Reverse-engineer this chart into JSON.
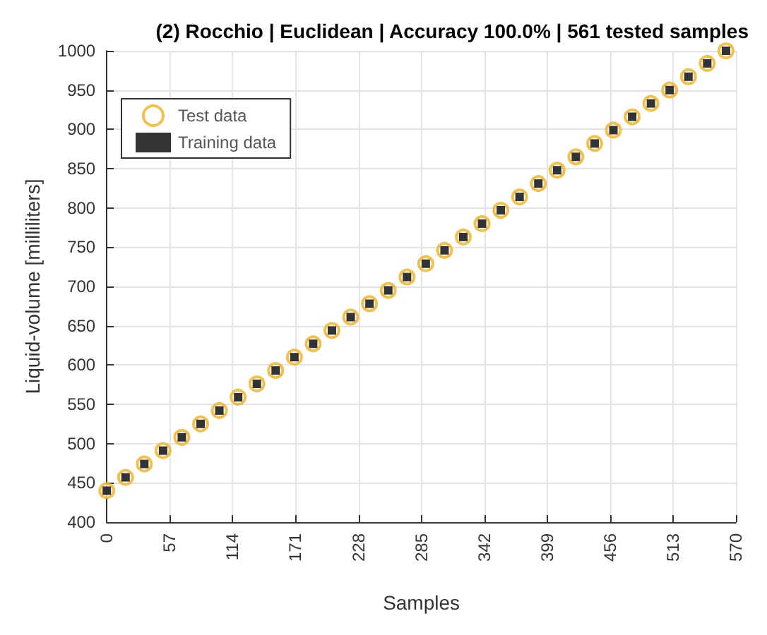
{
  "chart_data": {
    "type": "scatter",
    "title": "(2) Rocchio | Euclidean | Accuracy 100.0% | 561 tested samples",
    "xlabel": "Samples",
    "ylabel": "Liquid-volume [milliliters]",
    "x": [
      0,
      17,
      34,
      51,
      68,
      85,
      102,
      119,
      136,
      153,
      170,
      187,
      204,
      221,
      238,
      255,
      272,
      289,
      306,
      323,
      340,
      357,
      374,
      391,
      408,
      425,
      442,
      459,
      476,
      493,
      510,
      527,
      544,
      561
    ],
    "series": [
      {
        "name": "Test data",
        "color": "#edb120",
        "marker": "circle",
        "values": [
          440,
          457,
          474,
          491,
          508,
          525,
          542,
          559,
          576,
          593,
          610,
          627,
          644,
          661,
          678,
          695,
          712,
          729,
          746,
          763,
          780,
          797,
          814,
          831,
          848,
          865,
          882,
          899,
          916,
          933,
          950,
          967,
          984,
          1000
        ]
      },
      {
        "name": "Training data",
        "color": "#000000",
        "marker": "square",
        "values": [
          440,
          457,
          474,
          491,
          508,
          525,
          542,
          559,
          576,
          593,
          610,
          627,
          644,
          661,
          678,
          695,
          712,
          729,
          746,
          763,
          780,
          797,
          814,
          831,
          848,
          865,
          882,
          899,
          916,
          933,
          950,
          967,
          984,
          1000
        ]
      }
    ],
    "xlim": [
      0,
      570
    ],
    "xticks": [
      0,
      57,
      114,
      171,
      228,
      285,
      342,
      399,
      456,
      513,
      570
    ],
    "ylim": [
      400,
      1000
    ],
    "yticks": [
      400,
      450,
      500,
      550,
      600,
      650,
      700,
      750,
      800,
      850,
      900,
      950,
      1000
    ],
    "grid": true,
    "legend": "top left"
  }
}
